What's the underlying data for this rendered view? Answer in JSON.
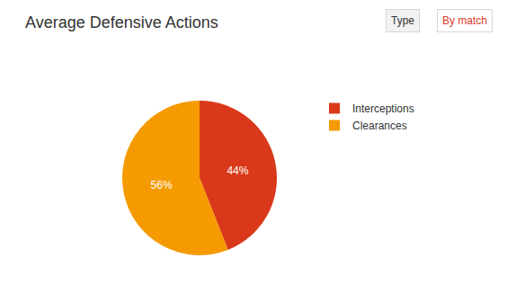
{
  "chart_data": {
    "type": "pie",
    "title": "Average Defensive Actions",
    "annotations": [
      "Type",
      "By match"
    ],
    "categories": [
      "Interceptions",
      "Clearances"
    ],
    "values": [
      44,
      56
    ],
    "value_labels": [
      "44%",
      "56%"
    ],
    "colors": [
      "#d9391a",
      "#f59a00"
    ],
    "data_labels": true,
    "legend": "right"
  }
}
